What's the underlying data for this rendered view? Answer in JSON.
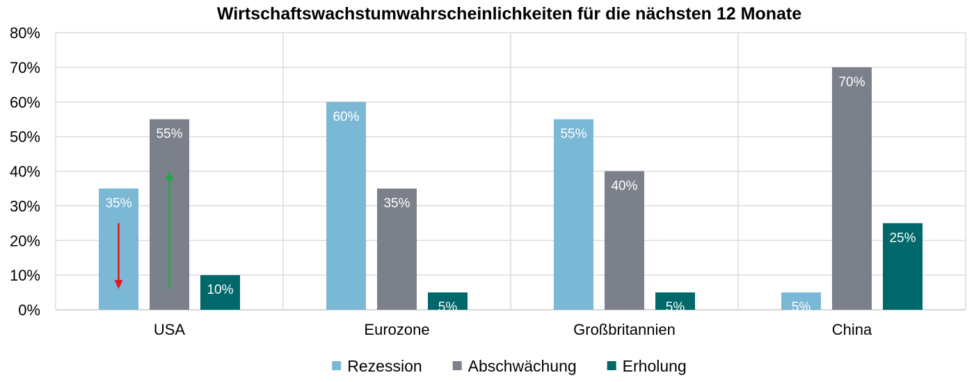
{
  "chart_data": {
    "type": "bar",
    "title": "Wirtschaftswachstumwahrscheinlichkeiten für die nächsten 12 Monate",
    "categories": [
      "USA",
      "Eurozone",
      "Großbritannien",
      "China"
    ],
    "series": [
      {
        "name": "Rezession",
        "color": "#7ab8d6",
        "values": [
          35,
          60,
          55,
          5
        ]
      },
      {
        "name": "Abschwächung",
        "color": "#7b808a",
        "values": [
          55,
          35,
          40,
          70
        ]
      },
      {
        "name": "Erholung",
        "color": "#00676a",
        "values": [
          10,
          5,
          5,
          25
        ]
      }
    ],
    "data_labels": [
      [
        "35%",
        "60%",
        "55%",
        "5%"
      ],
      [
        "55%",
        "35%",
        "40%",
        "70%"
      ],
      [
        "10%",
        "5%",
        "5%",
        "25%"
      ]
    ],
    "y_ticks": [
      "0%",
      "10%",
      "20%",
      "30%",
      "40%",
      "50%",
      "60%",
      "70%",
      "80%"
    ],
    "ylim": [
      0,
      80
    ],
    "grid": true,
    "legend_position": "bottom",
    "annotations": [
      {
        "type": "arrow",
        "direction": "down",
        "color": "#e8141c",
        "category": "USA",
        "series": "Rezession",
        "from": 25,
        "to": 6
      },
      {
        "type": "arrow",
        "direction": "up",
        "color": "#1fa84a",
        "category": "USA",
        "series": "Abschwächung",
        "from": 6,
        "to": 40
      }
    ]
  }
}
